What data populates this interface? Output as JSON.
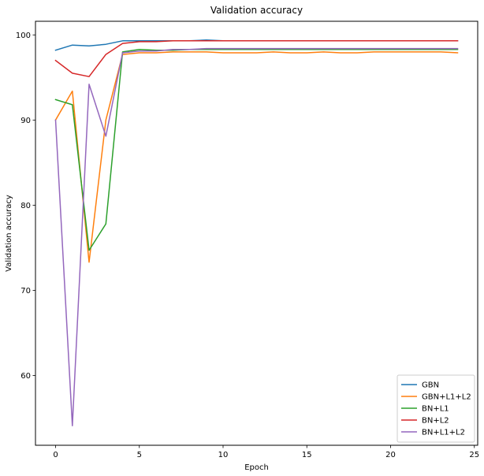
{
  "chart_data": {
    "type": "line",
    "title": "Validation accuracy",
    "xlabel": "Epoch",
    "ylabel": "Validation accuracy",
    "xlim": [
      -1.2,
      25.2
    ],
    "ylim": [
      51.8,
      101.6
    ],
    "xticks": [
      0,
      5,
      10,
      15,
      20,
      25
    ],
    "yticks": [
      60,
      70,
      80,
      90,
      100
    ],
    "grid": false,
    "legend_position": "lower-right",
    "x": [
      0,
      1,
      2,
      3,
      4,
      5,
      6,
      7,
      8,
      9,
      10,
      11,
      12,
      13,
      14,
      15,
      16,
      17,
      18,
      19,
      20,
      21,
      22,
      23,
      24
    ],
    "series": [
      {
        "name": "GBN",
        "color": "#1f77b4",
        "values": [
          98.2,
          98.8,
          98.7,
          98.9,
          99.3,
          99.3,
          99.3,
          99.3,
          99.3,
          99.4,
          99.3,
          99.3,
          99.3,
          99.3,
          99.3,
          99.3,
          99.3,
          99.3,
          99.3,
          99.3,
          99.3,
          99.3,
          99.3,
          99.3,
          99.3
        ]
      },
      {
        "name": "GBN+L1+L2",
        "color": "#ff7f0e",
        "values": [
          90.0,
          93.4,
          73.3,
          90.0,
          97.7,
          97.9,
          97.9,
          98.0,
          98.0,
          98.0,
          97.9,
          97.9,
          97.9,
          98.0,
          97.9,
          97.9,
          98.0,
          97.9,
          97.9,
          98.0,
          98.0,
          98.0,
          98.0,
          98.0,
          97.9
        ]
      },
      {
        "name": "BN+L1",
        "color": "#2ca02c",
        "values": [
          92.4,
          91.8,
          74.7,
          77.8,
          98.0,
          98.3,
          98.2,
          98.2,
          98.3,
          98.3,
          98.3,
          98.3,
          98.3,
          98.3,
          98.3,
          98.3,
          98.3,
          98.3,
          98.3,
          98.3,
          98.3,
          98.3,
          98.3,
          98.3,
          98.3
        ]
      },
      {
        "name": "BN+L2",
        "color": "#d62728",
        "values": [
          97.0,
          95.5,
          95.1,
          97.7,
          99.0,
          99.2,
          99.2,
          99.3,
          99.3,
          99.3,
          99.3,
          99.3,
          99.3,
          99.3,
          99.3,
          99.3,
          99.3,
          99.3,
          99.3,
          99.3,
          99.3,
          99.3,
          99.3,
          99.3,
          99.3
        ]
      },
      {
        "name": "BN+L1+L2",
        "color": "#9467bd",
        "values": [
          90.0,
          54.1,
          94.2,
          88.1,
          97.9,
          98.1,
          98.1,
          98.3,
          98.3,
          98.4,
          98.4,
          98.4,
          98.4,
          98.4,
          98.4,
          98.4,
          98.4,
          98.4,
          98.4,
          98.4,
          98.4,
          98.4,
          98.4,
          98.4,
          98.4
        ]
      }
    ]
  }
}
